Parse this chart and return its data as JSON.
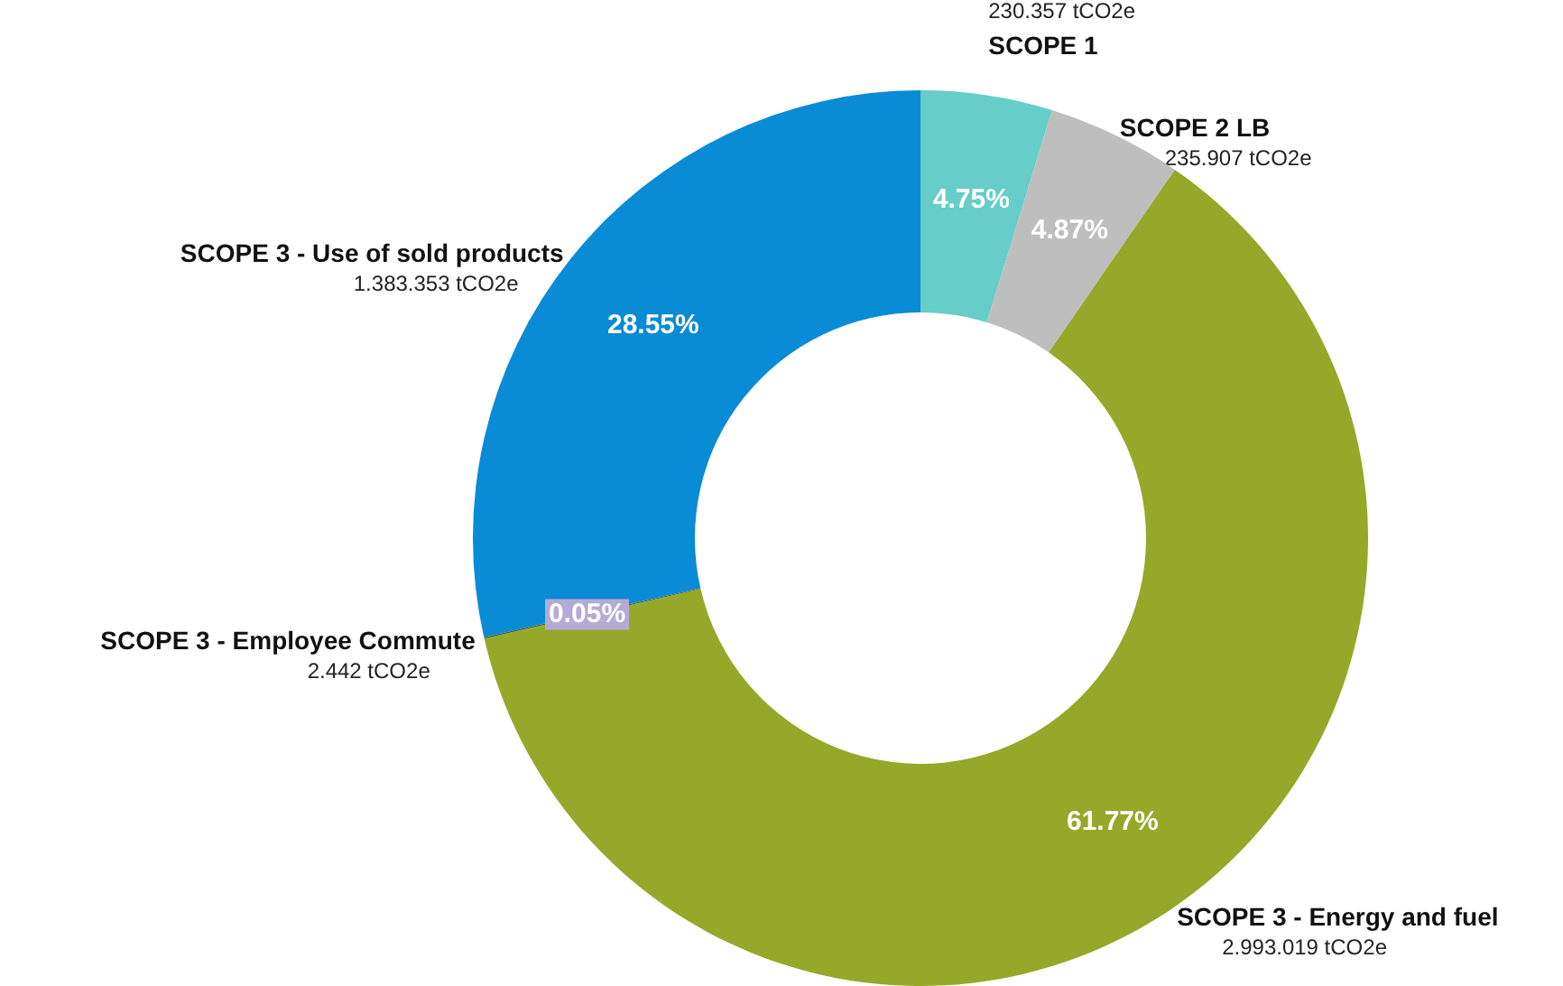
{
  "chart_data": {
    "type": "donut",
    "categories": [
      "SCOPE 1",
      "SCOPE 2 LB",
      "SCOPE 3 - Energy and fuel",
      "SCOPE 3 - Employee Commute",
      "SCOPE 3 - Use of sold products"
    ],
    "values": [
      4.75,
      4.87,
      61.77,
      0.05,
      28.55
    ],
    "value_labels": [
      "4.75%",
      "4.87%",
      "61.77%",
      "0.05%",
      "28.55%"
    ],
    "colors": [
      "#66cdc8",
      "#bebebe",
      "#95a829",
      "#4f5a2a",
      "#0a8bd6"
    ],
    "annotations": [
      "230.357 tCO2e",
      "235.907 tCO2e",
      "2.993.019 tCO2e",
      "2.442 tCO2e",
      "1.383.353 tCO2e"
    ],
    "legend": false
  }
}
